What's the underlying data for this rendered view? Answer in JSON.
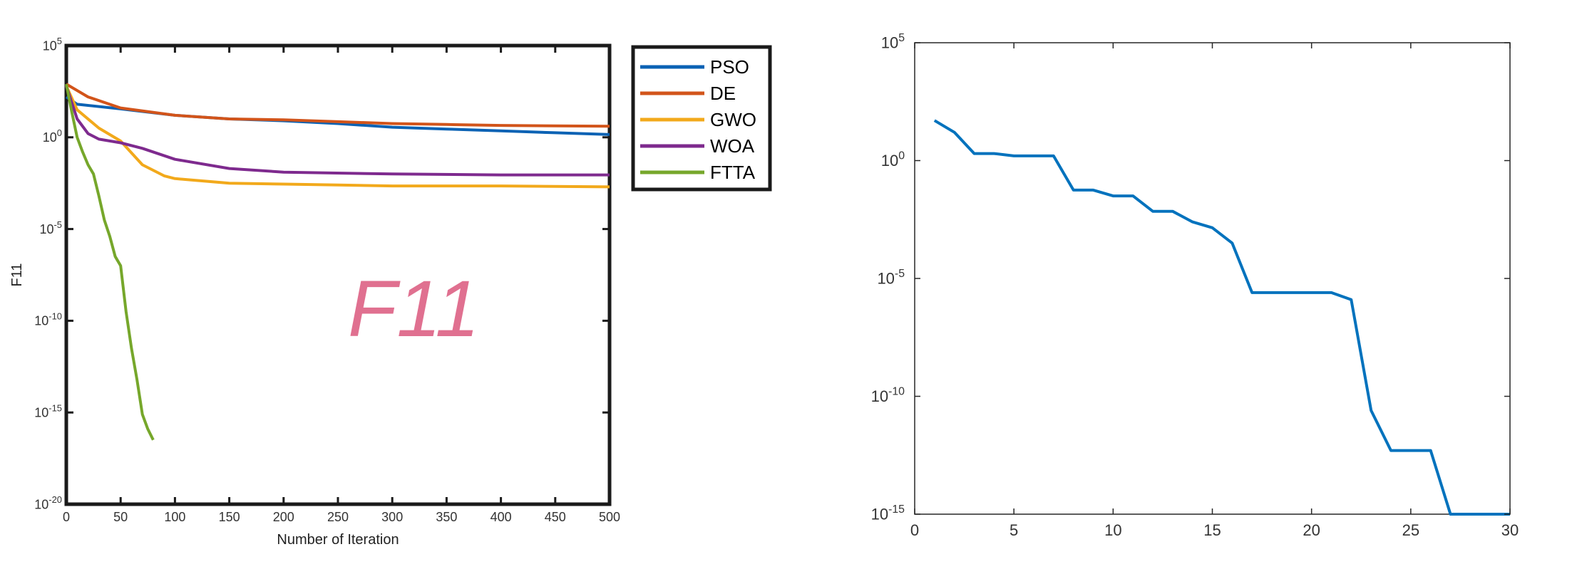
{
  "chart_data": [
    {
      "type": "line",
      "title": "",
      "annotation": "F11",
      "xlabel": "Number of Iteration",
      "ylabel": "F11",
      "xlim": [
        0,
        500
      ],
      "ylim_log10": [
        -20,
        5
      ],
      "yscale": "log",
      "x_ticks": [
        0,
        50,
        100,
        150,
        200,
        250,
        300,
        350,
        400,
        450,
        500
      ],
      "y_ticks_exp": [
        5,
        0,
        -5,
        -10,
        -15,
        -20
      ],
      "legend_position": "outside-top-right",
      "series": [
        {
          "name": "PSO",
          "color": "#0b62b4",
          "x": [
            0,
            10,
            50,
            100,
            150,
            200,
            250,
            300,
            350,
            400,
            450,
            500
          ],
          "log10y": [
            2.2,
            1.8,
            1.55,
            1.2,
            1.0,
            0.9,
            0.75,
            0.55,
            0.45,
            0.35,
            0.25,
            0.15
          ]
        },
        {
          "name": "DE",
          "color": "#d2541a",
          "x": [
            0,
            20,
            50,
            100,
            150,
            200,
            250,
            300,
            350,
            400,
            450,
            500
          ],
          "log10y": [
            2.9,
            2.2,
            1.6,
            1.2,
            1.0,
            0.95,
            0.85,
            0.75,
            0.7,
            0.65,
            0.62,
            0.6
          ]
        },
        {
          "name": "GWO",
          "color": "#f2a91b",
          "x": [
            0,
            10,
            30,
            50,
            70,
            90,
            100,
            150,
            200,
            250,
            300,
            400,
            500
          ],
          "log10y": [
            2.8,
            1.5,
            0.5,
            -0.2,
            -1.5,
            -2.1,
            -2.25,
            -2.5,
            -2.55,
            -2.6,
            -2.65,
            -2.65,
            -2.7
          ]
        },
        {
          "name": "WOA",
          "color": "#7e2a8e",
          "x": [
            0,
            10,
            20,
            30,
            50,
            70,
            100,
            150,
            200,
            300,
            400,
            500
          ],
          "log10y": [
            2.8,
            1.0,
            0.2,
            -0.1,
            -0.3,
            -0.6,
            -1.2,
            -1.7,
            -1.9,
            -2.0,
            -2.05,
            -2.05
          ]
        },
        {
          "name": "FTTA",
          "color": "#76a72b",
          "x": [
            0,
            5,
            10,
            15,
            20,
            25,
            30,
            35,
            40,
            45,
            50,
            55,
            60,
            65,
            70,
            75,
            80
          ],
          "log10y": [
            2.9,
            1.4,
            0.0,
            -0.8,
            -1.5,
            -2.0,
            -3.2,
            -4.5,
            -5.4,
            -6.5,
            -7.0,
            -9.5,
            -11.5,
            -13.2,
            -15.1,
            -15.9,
            -16.5
          ]
        }
      ]
    },
    {
      "type": "line",
      "title": "",
      "xlabel": "",
      "ylabel": "",
      "xlim": [
        0,
        30
      ],
      "ylim_log10": [
        -15,
        5
      ],
      "yscale": "log",
      "x_ticks": [
        0,
        5,
        10,
        15,
        20,
        25,
        30
      ],
      "y_ticks_exp": [
        5,
        0,
        -5,
        -10,
        -15
      ],
      "series": [
        {
          "color": "#0072bd",
          "x": [
            1,
            2,
            3,
            4,
            5,
            6,
            7,
            8,
            9,
            10,
            11,
            12,
            13,
            14,
            15,
            16,
            17,
            18,
            19,
            20,
            21,
            22,
            23,
            24,
            25,
            26,
            27,
            28,
            29,
            30
          ],
          "log10y": [
            1.7,
            1.2,
            0.3,
            0.3,
            0.2,
            0.2,
            0.2,
            -1.25,
            -1.25,
            -1.5,
            -1.5,
            -2.15,
            -2.15,
            -2.6,
            -2.85,
            -3.5,
            -5.6,
            -5.6,
            -5.6,
            -5.6,
            -5.6,
            -5.9,
            -10.6,
            -12.3,
            -12.3,
            -12.3,
            -15.0,
            -15.0,
            -15.0,
            -15.0
          ]
        }
      ]
    }
  ]
}
